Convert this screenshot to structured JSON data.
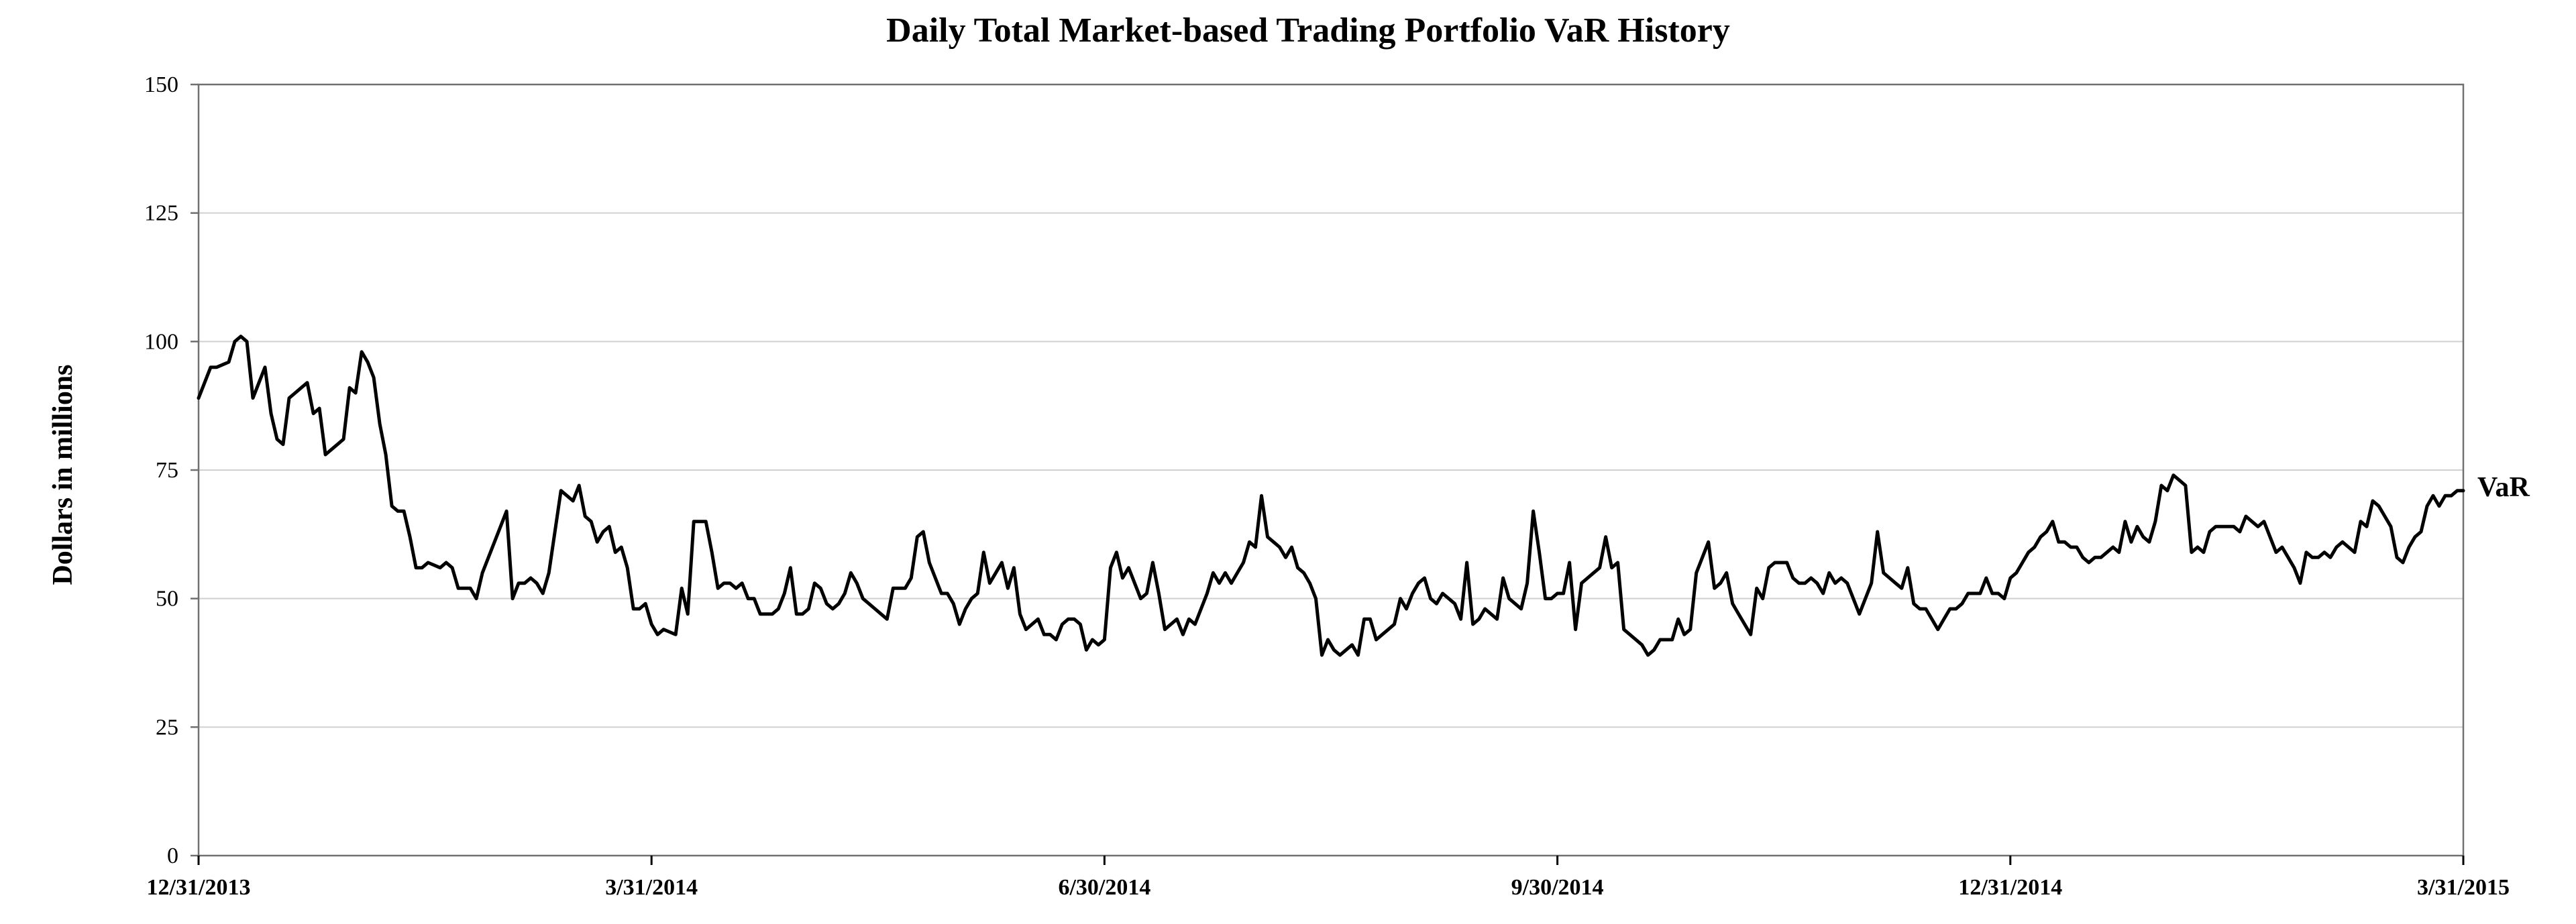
{
  "chart_data": {
    "type": "line",
    "title": "Daily Total Market-based Trading Portfolio VaR History",
    "xlabel": "",
    "ylabel": "Dollars in millions",
    "ylim": [
      0,
      150
    ],
    "yticks": [
      0,
      25,
      50,
      75,
      100,
      125,
      150
    ],
    "xtick_labels": [
      "12/31/2013",
      "3/31/2014",
      "6/30/2014",
      "9/30/2014",
      "12/31/2014",
      "3/31/2015"
    ],
    "grid": true,
    "series": [
      {
        "name": "VaR",
        "values": [
          89,
          92,
          95,
          95,
          95.5,
          96,
          100,
          101,
          100,
          89,
          92,
          95,
          86,
          81,
          80,
          89,
          90,
          91,
          92,
          86,
          87,
          78,
          79,
          80,
          81,
          91,
          90,
          98,
          96,
          93,
          84,
          78,
          68,
          67,
          67,
          62,
          56,
          56,
          57,
          56.5,
          56,
          57,
          56,
          52,
          52,
          52,
          50,
          55,
          58,
          61,
          64,
          67,
          50,
          53,
          53,
          54,
          53,
          51,
          55,
          63,
          71,
          70,
          69,
          72,
          66,
          65,
          61,
          63,
          64,
          59,
          60,
          56,
          48,
          48,
          49,
          45,
          43,
          44,
          43.5,
          43,
          52,
          47,
          65,
          65,
          65,
          59,
          52,
          53,
          53,
          52,
          53,
          50,
          50,
          47,
          47,
          47,
          48,
          51,
          56,
          47,
          47,
          48,
          53,
          52,
          49,
          48,
          49,
          51,
          55,
          53,
          50,
          49,
          48,
          47,
          46,
          52,
          52,
          52,
          54,
          62,
          63,
          57,
          54,
          51,
          51,
          49,
          45,
          48,
          50,
          51,
          59,
          53,
          55,
          57,
          52,
          56,
          47,
          44,
          45,
          46,
          43,
          43,
          42,
          45,
          46,
          46,
          45,
          40,
          42,
          41,
          42,
          56,
          59,
          54,
          56,
          53,
          50,
          51,
          57,
          51,
          44,
          45,
          46,
          43,
          46,
          45,
          48,
          51,
          55,
          53,
          55,
          53,
          55,
          57,
          61,
          60,
          70,
          62,
          61,
          60,
          58,
          60,
          56,
          55,
          53,
          50,
          39,
          42,
          40,
          39,
          40,
          41,
          39,
          46,
          46,
          42,
          43,
          44,
          45,
          50,
          48,
          51,
          53,
          54,
          50,
          49,
          51,
          50,
          49,
          46,
          57,
          45,
          46,
          48,
          47,
          46,
          54,
          50,
          49,
          48,
          53,
          67,
          59,
          50,
          50,
          51,
          51,
          57,
          44,
          53,
          54,
          55,
          56,
          62,
          56,
          57,
          44,
          43,
          42,
          41,
          39,
          40,
          42,
          42,
          42,
          46,
          43,
          44,
          55,
          58,
          61,
          52,
          53,
          55,
          49,
          47,
          45,
          43,
          52,
          50,
          56,
          57,
          57,
          57,
          54,
          53,
          53,
          54,
          53,
          51,
          55,
          53,
          54,
          53,
          50,
          47,
          50,
          53,
          63,
          55,
          54,
          53,
          52,
          56,
          49,
          48,
          48,
          46,
          44,
          46,
          48,
          48,
          49,
          51,
          51,
          51,
          54,
          51,
          51,
          50,
          54,
          55,
          57,
          59,
          60,
          62,
          63,
          65,
          61,
          61,
          60,
          60,
          58,
          57,
          58,
          58,
          59,
          60,
          59,
          65,
          61,
          64,
          62,
          61,
          65,
          72,
          71,
          74,
          73,
          72,
          59,
          60,
          59,
          63,
          64,
          64,
          64,
          64,
          63,
          66,
          65,
          64,
          65,
          62,
          59,
          60,
          58,
          56,
          53,
          59,
          58,
          58,
          59,
          58,
          60,
          61,
          60,
          59,
          65,
          64,
          69,
          68,
          66,
          64,
          58,
          57,
          60,
          62,
          63,
          68,
          70,
          68,
          70,
          70,
          71,
          71
        ]
      }
    ]
  }
}
